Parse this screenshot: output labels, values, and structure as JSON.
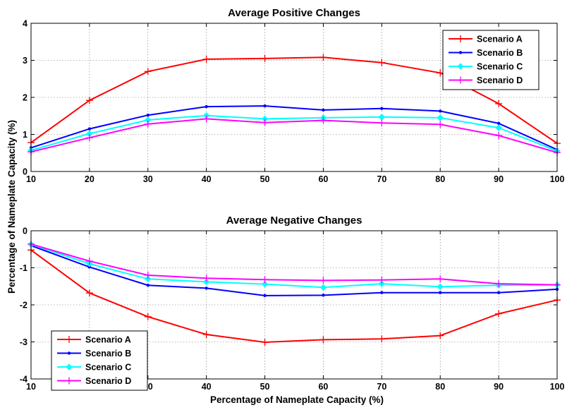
{
  "figure": {
    "shared_ylabel": "Percentage of Nameplate Capacity (%)",
    "shared_xlabel": "Percentage of Nameplate Capacity (%)"
  },
  "chart_data": [
    {
      "type": "line",
      "title": "Average Positive Changes",
      "xlabel": "",
      "ylabel": "Percentage of Nameplate Capacity (%)",
      "x": [
        10,
        20,
        30,
        40,
        50,
        60,
        70,
        80,
        90,
        100
      ],
      "xlim": [
        10,
        100
      ],
      "ylim": [
        0,
        4
      ],
      "xticks": [
        "10",
        "20",
        "30",
        "40",
        "50",
        "60",
        "70",
        "80",
        "90",
        "100"
      ],
      "yticks": [
        "0",
        "1",
        "2",
        "3",
        "4"
      ],
      "grid": true,
      "legend_position": "top-right",
      "series": [
        {
          "name": "Scenario A",
          "color": "#ff0000",
          "marker": "plus",
          "values": [
            0.78,
            1.92,
            2.7,
            3.03,
            3.05,
            3.08,
            2.94,
            2.66,
            1.83,
            0.76
          ]
        },
        {
          "name": "Scenario B",
          "color": "#0000ff",
          "marker": "dot",
          "values": [
            0.64,
            1.15,
            1.52,
            1.75,
            1.77,
            1.66,
            1.7,
            1.63,
            1.3,
            0.59
          ]
        },
        {
          "name": "Scenario C",
          "color": "#00ffff",
          "marker": "diamond",
          "values": [
            0.57,
            1.02,
            1.39,
            1.51,
            1.42,
            1.45,
            1.47,
            1.45,
            1.18,
            0.55
          ]
        },
        {
          "name": "Scenario D",
          "color": "#ff00ff",
          "marker": "plus",
          "values": [
            0.53,
            0.91,
            1.28,
            1.42,
            1.32,
            1.38,
            1.31,
            1.27,
            0.97,
            0.51
          ]
        }
      ]
    },
    {
      "type": "line",
      "title": "Average Negative Changes",
      "xlabel": "Percentage of Nameplate Capacity (%)",
      "ylabel": "Percentage of Nameplate Capacity (%)",
      "x": [
        10,
        20,
        30,
        40,
        50,
        60,
        70,
        80,
        90,
        100
      ],
      "xlim": [
        10,
        100
      ],
      "ylim": [
        -4,
        0
      ],
      "xticks": [
        "10",
        "20",
        "30",
        "40",
        "50",
        "60",
        "70",
        "80",
        "90",
        "100"
      ],
      "yticks": [
        "-4",
        "-3",
        "-2",
        "-1",
        "0"
      ],
      "grid": true,
      "legend_position": "bottom-left",
      "series": [
        {
          "name": "Scenario A",
          "color": "#ff0000",
          "marker": "plus",
          "values": [
            -0.52,
            -1.68,
            -2.32,
            -2.8,
            -3.01,
            -2.94,
            -2.92,
            -2.83,
            -2.24,
            -1.87
          ]
        },
        {
          "name": "Scenario B",
          "color": "#0000ff",
          "marker": "dot",
          "values": [
            -0.4,
            -0.98,
            -1.47,
            -1.55,
            -1.75,
            -1.74,
            -1.67,
            -1.67,
            -1.67,
            -1.58
          ]
        },
        {
          "name": "Scenario C",
          "color": "#00ffff",
          "marker": "diamond",
          "values": [
            -0.37,
            -0.89,
            -1.3,
            -1.38,
            -1.44,
            -1.53,
            -1.43,
            -1.51,
            -1.47,
            -1.46
          ]
        },
        {
          "name": "Scenario D",
          "color": "#ff00ff",
          "marker": "plus",
          "values": [
            -0.36,
            -0.82,
            -1.2,
            -1.28,
            -1.32,
            -1.34,
            -1.33,
            -1.3,
            -1.43,
            -1.46
          ]
        }
      ]
    }
  ]
}
